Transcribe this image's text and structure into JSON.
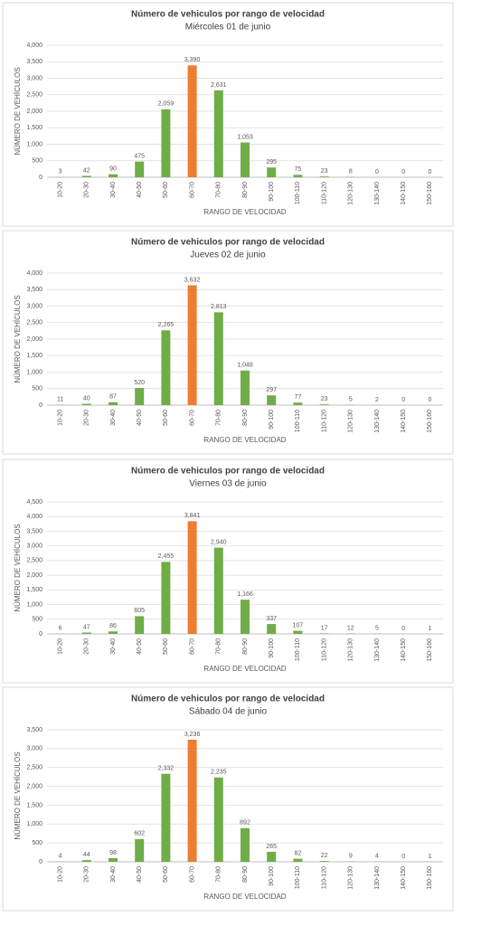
{
  "chart_data": [
    {
      "type": "bar",
      "title": "Número de vehiculos por rango de velocidad",
      "subtitle": "Miércoles 01 de junio",
      "y_label": "NÚMERO DE VEHÍCULOS",
      "x_label": "RANGO DE VELOCIDAD",
      "categories": [
        "10-20",
        "20-30",
        "30-40",
        "40-50",
        "50-60",
        "60-70",
        "70-80",
        "80-90",
        "90-100",
        "100-110",
        "110-120",
        "120-130",
        "130-140",
        "140-150",
        "150-160"
      ],
      "values": [
        3,
        42,
        90,
        475,
        2059,
        3390,
        2631,
        1053,
        295,
        75,
        23,
        8,
        0,
        0,
        0
      ],
      "value_labels": [
        "3",
        "42",
        "90",
        "475",
        "2,059",
        "3,390",
        "2,631",
        "1,053",
        "295",
        "75",
        "23",
        "8",
        "0",
        "0",
        "0"
      ],
      "colors": [
        "#70ad47",
        "#70ad47",
        "#70ad47",
        "#70ad47",
        "#70ad47",
        "#ed7d31",
        "#70ad47",
        "#70ad47",
        "#70ad47",
        "#70ad47",
        "#70ad47",
        "#70ad47",
        "#70ad47",
        "#70ad47",
        "#70ad47"
      ],
      "ylim": [
        0,
        4000
      ],
      "yticks": [
        0,
        500,
        {
          "value": 1000,
          "label": "1,000"
        },
        {
          "value": 1500,
          "label": "1,500"
        },
        {
          "value": 2000,
          "label": "2,000"
        },
        {
          "value": 2500,
          "label": "2,500"
        },
        {
          "value": 3000,
          "label": "3,000"
        },
        {
          "value": 3500,
          "label": "3,500"
        },
        {
          "value": 4000,
          "label": "4,000"
        }
      ],
      "grid": true
    },
    {
      "type": "bar",
      "title": "Número de vehiculos por rango de velocidad",
      "subtitle": "Jueves  02 de junio",
      "y_label": "NÚMERO DE VEHÍCULOS",
      "x_label": "RANGO DE VELOCIDAD",
      "categories": [
        "10-20",
        "20-30",
        "30-40",
        "40-50",
        "50-60",
        "60-70",
        "70-80",
        "80-90",
        "90-100",
        "100-110",
        "110-120",
        "120-130",
        "130-140",
        "140-150",
        "150-160"
      ],
      "values": [
        11,
        40,
        87,
        520,
        2265,
        3632,
        2813,
        1048,
        297,
        77,
        23,
        5,
        2,
        0,
        0
      ],
      "value_labels": [
        "11",
        "40",
        "87",
        "520",
        "2,265",
        "3,632",
        "2,813",
        "1,048",
        "297",
        "77",
        "23",
        "5",
        "2",
        "0",
        "0"
      ],
      "colors": [
        "#70ad47",
        "#70ad47",
        "#70ad47",
        "#70ad47",
        "#70ad47",
        "#ed7d31",
        "#70ad47",
        "#70ad47",
        "#70ad47",
        "#70ad47",
        "#70ad47",
        "#70ad47",
        "#70ad47",
        "#70ad47",
        "#70ad47"
      ],
      "ylim": [
        0,
        4000
      ],
      "yticks": [
        0,
        500,
        {
          "value": 1000,
          "label": "1,000"
        },
        {
          "value": 1500,
          "label": "1,500"
        },
        {
          "value": 2000,
          "label": "2,000"
        },
        {
          "value": 2500,
          "label": "2,500"
        },
        {
          "value": 3000,
          "label": "3,000"
        },
        {
          "value": 3500,
          "label": "3,500"
        },
        {
          "value": 4000,
          "label": "4,000"
        }
      ],
      "grid": true
    },
    {
      "type": "bar",
      "title": "Número de vehiculos por rango de velocidad",
      "subtitle": "Viernes 03 de junio",
      "y_label": "NÚMERO DE VEHÍCULOS",
      "x_label": "RANGO DE VELOCIDAD",
      "categories": [
        "10-20",
        "20-30",
        "30-40",
        "40-50",
        "50-60",
        "60-70",
        "70-80",
        "80-90",
        "90-100",
        "100-110",
        "110-120",
        "120-130",
        "130-140",
        "140-150",
        "150-160"
      ],
      "values": [
        6,
        47,
        86,
        605,
        2455,
        3841,
        2940,
        1166,
        337,
        107,
        17,
        12,
        5,
        0,
        1
      ],
      "value_labels": [
        "6",
        "47",
        "86",
        "605",
        "2,455",
        "3,841",
        "2,940",
        "1,166",
        "337",
        "107",
        "17",
        "12",
        "5",
        "0",
        "1"
      ],
      "colors": [
        "#70ad47",
        "#70ad47",
        "#70ad47",
        "#70ad47",
        "#70ad47",
        "#ed7d31",
        "#70ad47",
        "#70ad47",
        "#70ad47",
        "#70ad47",
        "#70ad47",
        "#70ad47",
        "#70ad47",
        "#70ad47",
        "#70ad47"
      ],
      "ylim": [
        0,
        4500
      ],
      "yticks": [
        0,
        500,
        {
          "value": 1000,
          "label": "1,000"
        },
        {
          "value": 1500,
          "label": "1,500"
        },
        {
          "value": 2000,
          "label": "2,000"
        },
        {
          "value": 2500,
          "label": "2,500"
        },
        {
          "value": 3000,
          "label": "3,000"
        },
        {
          "value": 3500,
          "label": "3,500"
        },
        {
          "value": 4000,
          "label": "4,000"
        },
        {
          "value": 4500,
          "label": "4,500"
        }
      ],
      "grid": true
    },
    {
      "type": "bar",
      "title": "Número de vehiculos por rango de velocidad",
      "subtitle": "Sábado 04 de junio",
      "y_label": "NÚMERO DE VEHÍCULOS",
      "x_label": "RANGO DE VELOCIDAD",
      "categories": [
        "10-20",
        "20-30",
        "30-40",
        "40-50",
        "50-60",
        "60-70",
        "70-80",
        "80-90",
        "90-100",
        "100-110",
        "110-120",
        "120-130",
        "130-140",
        "140-150",
        "150-160"
      ],
      "values": [
        4,
        44,
        98,
        602,
        2332,
        3236,
        2235,
        892,
        265,
        82,
        22,
        9,
        4,
        0,
        1
      ],
      "value_labels": [
        "4",
        "44",
        "98",
        "602",
        "2,332",
        "3,236",
        "2,235",
        "892",
        "265",
        "82",
        "22",
        "9",
        "4",
        "0",
        "1"
      ],
      "colors": [
        "#70ad47",
        "#70ad47",
        "#70ad47",
        "#70ad47",
        "#70ad47",
        "#ed7d31",
        "#70ad47",
        "#70ad47",
        "#70ad47",
        "#70ad47",
        "#70ad47",
        "#70ad47",
        "#70ad47",
        "#70ad47",
        "#70ad47"
      ],
      "ylim": [
        0,
        3500
      ],
      "yticks": [
        0,
        500,
        {
          "value": 1000,
          "label": "1,000"
        },
        {
          "value": 1500,
          "label": "1,500"
        },
        {
          "value": 2000,
          "label": "2,000"
        },
        {
          "value": 2500,
          "label": "2,500"
        },
        {
          "value": 3000,
          "label": "3,000"
        },
        {
          "value": 3500,
          "label": "3,500"
        }
      ],
      "grid": true
    }
  ]
}
